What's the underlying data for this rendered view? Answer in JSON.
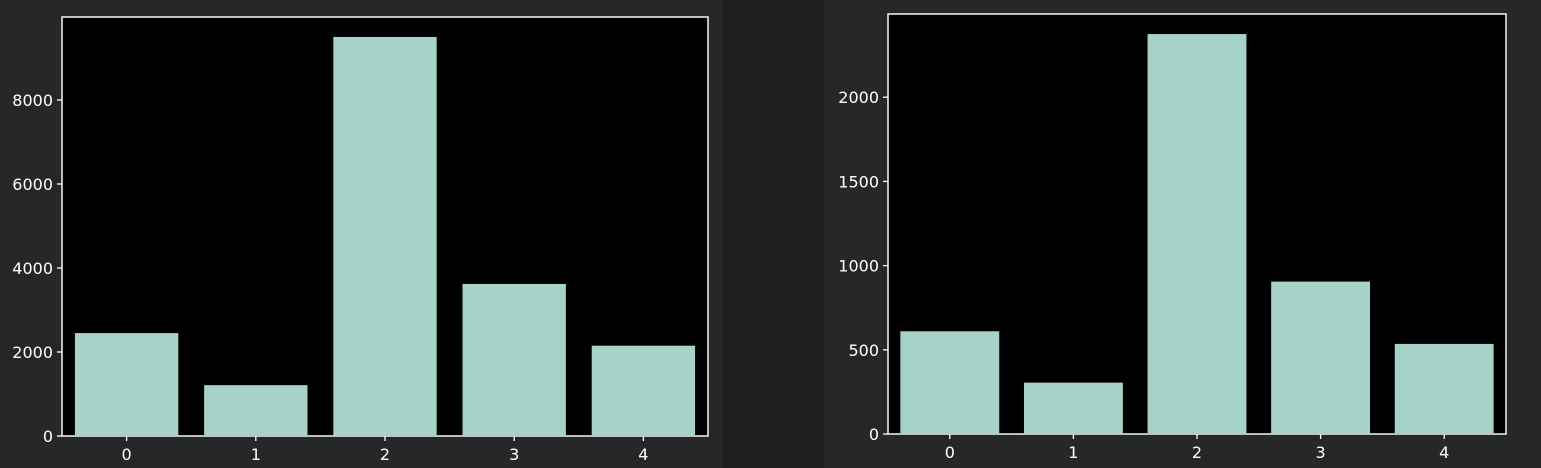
{
  "chart_data": [
    {
      "type": "bar",
      "categories": [
        "0",
        "1",
        "2",
        "3",
        "4"
      ],
      "values": [
        2450,
        1210,
        9500,
        3620,
        2150
      ],
      "title": "",
      "xlabel": "",
      "ylabel": "",
      "ylim": [
        0,
        9975
      ],
      "yticks": [
        "0",
        "2000",
        "4000",
        "6000",
        "8000"
      ],
      "ytick_values": [
        0,
        2000,
        4000,
        6000,
        8000
      ],
      "grid": false,
      "bar_color": "#a5d3ca",
      "background": "#000000"
    },
    {
      "type": "bar",
      "categories": [
        "0",
        "1",
        "2",
        "3",
        "4"
      ],
      "values": [
        610,
        305,
        2375,
        905,
        535
      ],
      "title": "",
      "xlabel": "",
      "ylabel": "",
      "ylim": [
        0,
        2494
      ],
      "yticks": [
        "0",
        "500",
        "1000",
        "1500",
        "2000"
      ],
      "ytick_values": [
        0,
        500,
        1000,
        1500,
        2000
      ],
      "grid": false,
      "bar_color": "#a5d3ca",
      "background": "#000000"
    }
  ]
}
